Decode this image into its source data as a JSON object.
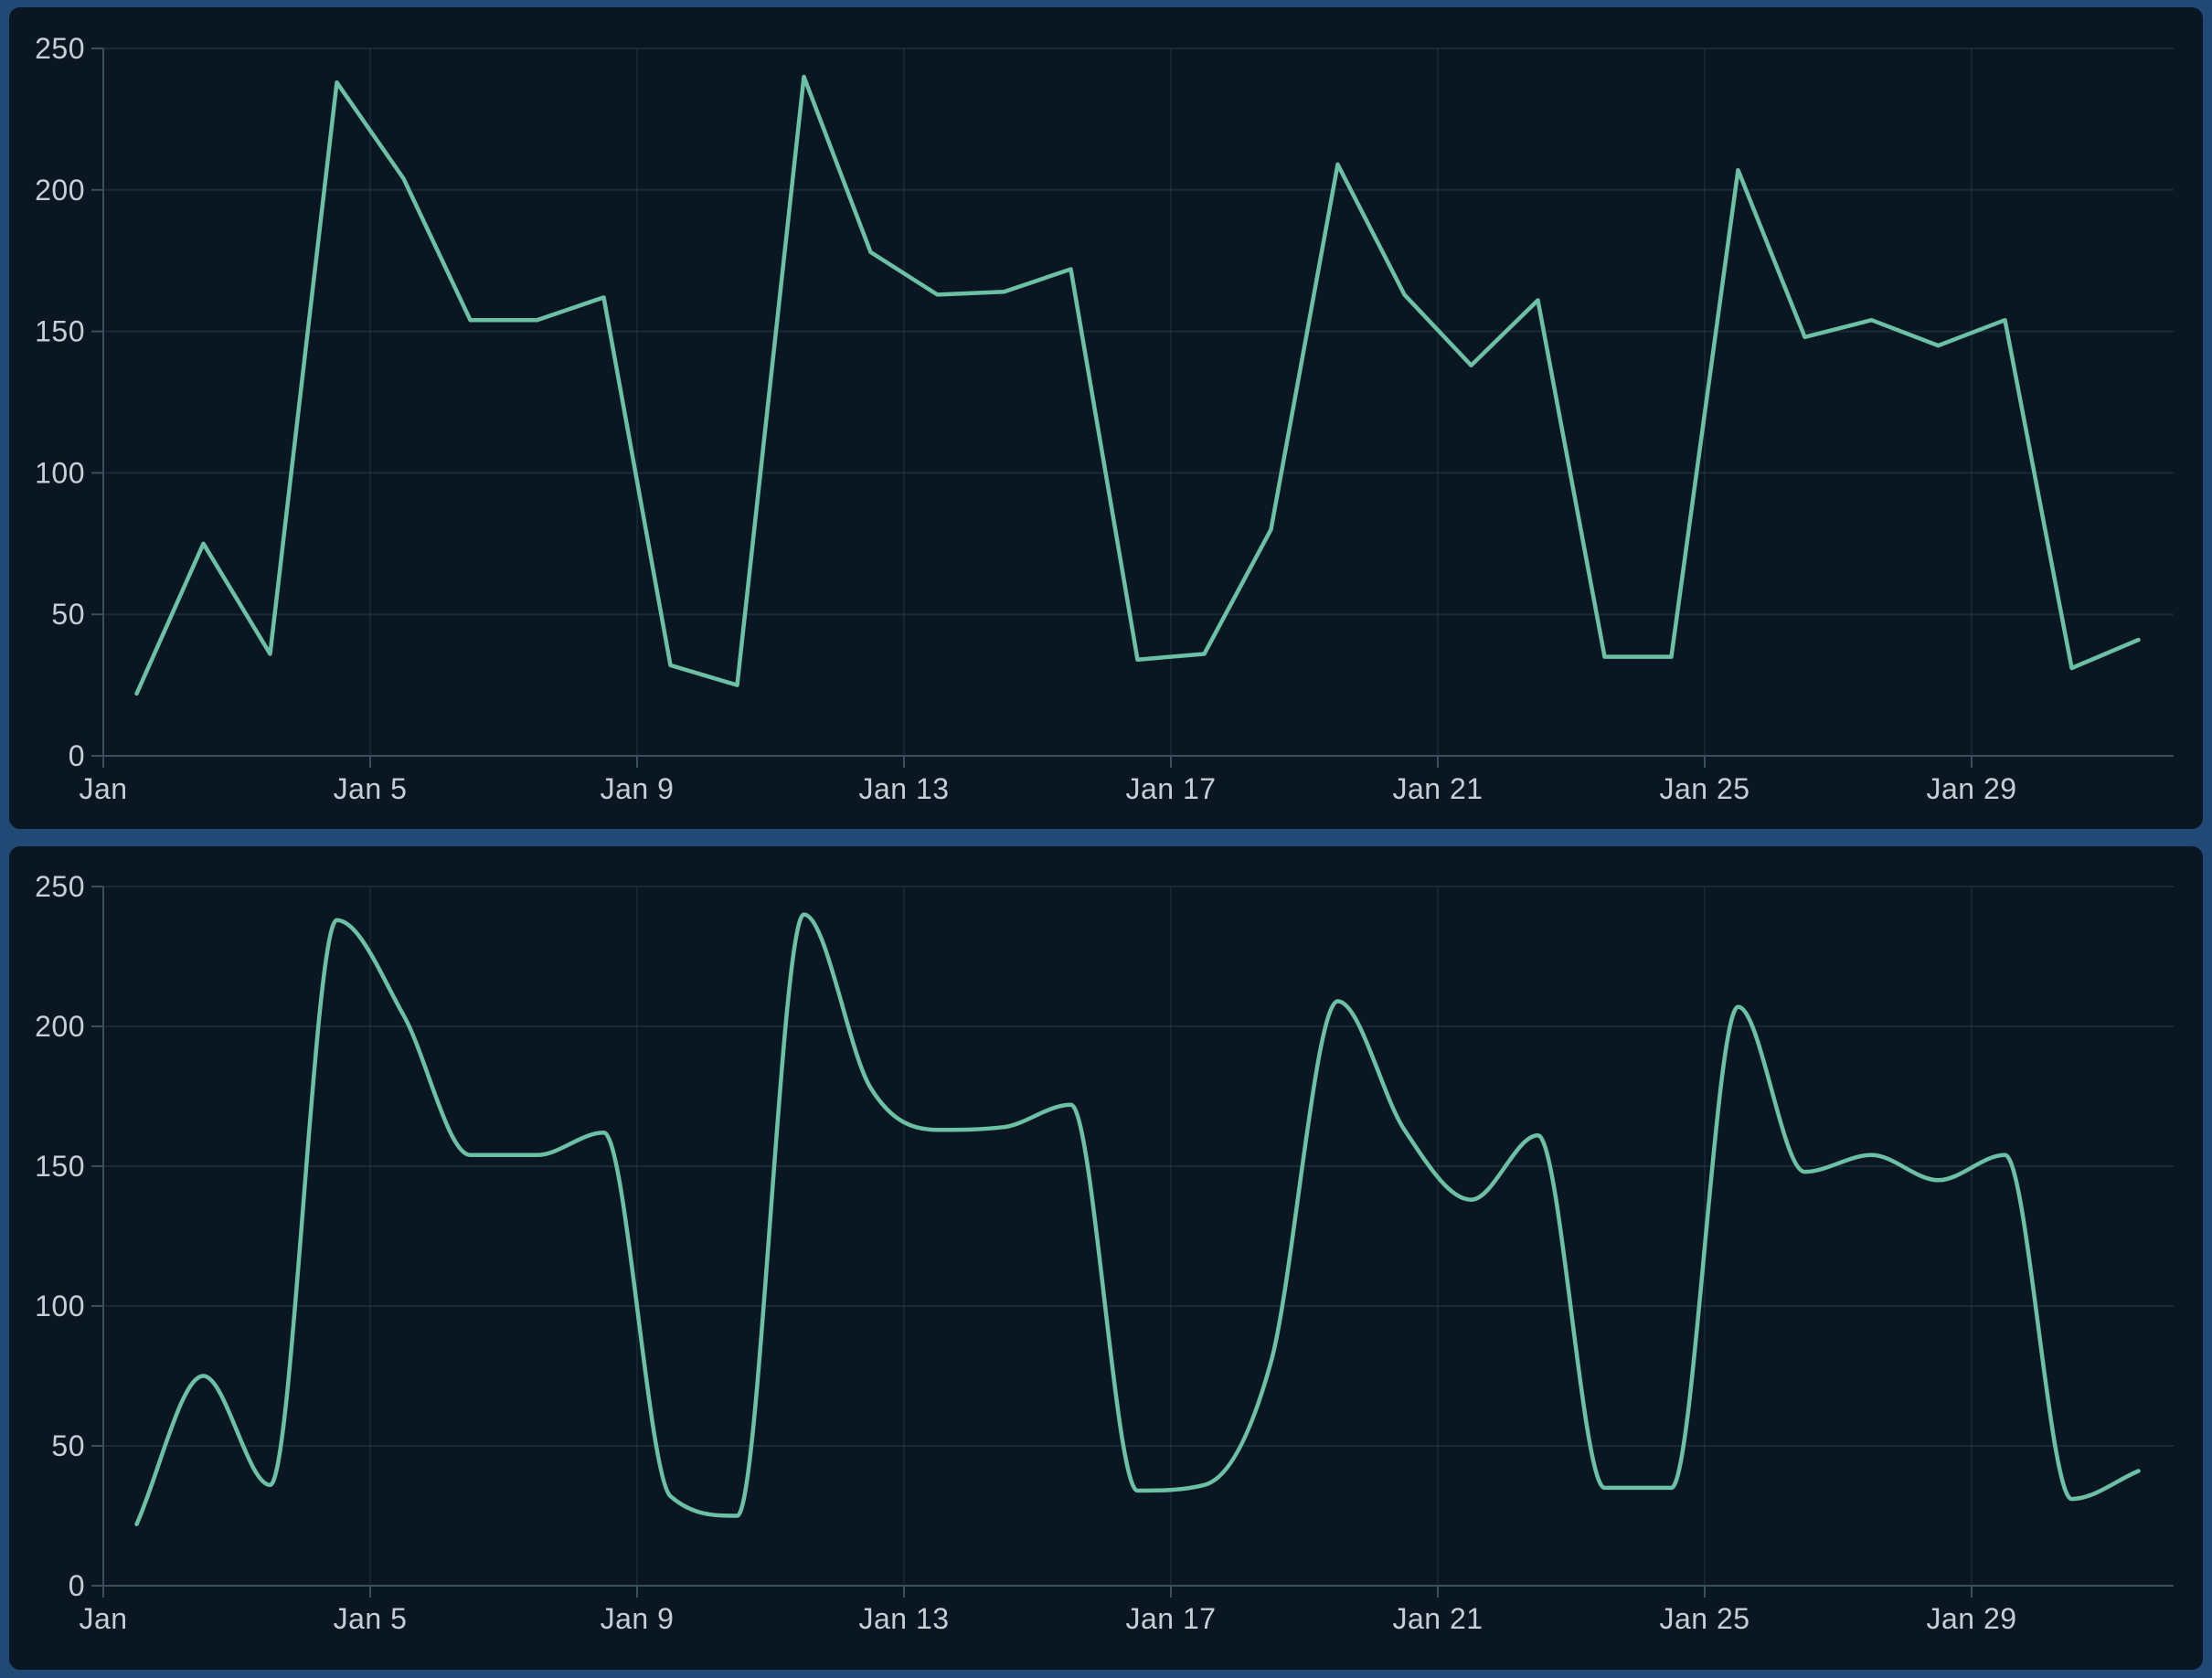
{
  "theme": {
    "frame_color": "#204976",
    "panel_background": "#0a1723",
    "line_color": "#6cc1a5",
    "grid_color": "rgba(130,160,180,0.13)",
    "vgrid_color": "rgba(130,160,180,0.10)",
    "axis_color": "#3a4e5e",
    "label_color": "#c6cdd5"
  },
  "chart_data": [
    {
      "type": "line",
      "interpolation": "linear",
      "title": "",
      "xlabel": "",
      "ylabel": "",
      "x": [
        "Jan 1",
        "Jan 2",
        "Jan 3",
        "Jan 4",
        "Jan 5",
        "Jan 6",
        "Jan 7",
        "Jan 8",
        "Jan 9",
        "Jan 10",
        "Jan 11",
        "Jan 12",
        "Jan 13",
        "Jan 14",
        "Jan 15",
        "Jan 16",
        "Jan 17",
        "Jan 18",
        "Jan 19",
        "Jan 20",
        "Jan 21",
        "Jan 22",
        "Jan 23",
        "Jan 24",
        "Jan 25",
        "Jan 26",
        "Jan 27",
        "Jan 28",
        "Jan 29",
        "Jan 30",
        "Jan 31"
      ],
      "values": [
        22,
        75,
        36,
        238,
        204,
        154,
        154,
        162,
        32,
        25,
        240,
        178,
        163,
        164,
        172,
        34,
        36,
        80,
        209,
        163,
        138,
        161,
        35,
        35,
        207,
        148,
        154,
        145,
        154,
        31,
        41
      ],
      "ylim": [
        0,
        250
      ],
      "y_ticks": [
        0,
        50,
        100,
        150,
        200,
        250
      ],
      "x_ticks": [
        {
          "index": 0,
          "label": "Jan"
        },
        {
          "index": 4,
          "label": "Jan 5"
        },
        {
          "index": 8,
          "label": "Jan 9"
        },
        {
          "index": 12,
          "label": "Jan 13"
        },
        {
          "index": 16,
          "label": "Jan 17"
        },
        {
          "index": 20,
          "label": "Jan 21"
        },
        {
          "index": 24,
          "label": "Jan 25"
        },
        {
          "index": 28,
          "label": "Jan 29"
        }
      ],
      "grid": true,
      "legend": null,
      "line_color": "#6cc1a5"
    },
    {
      "type": "line",
      "interpolation": "smooth",
      "title": "",
      "xlabel": "",
      "ylabel": "",
      "x": [
        "Jan 1",
        "Jan 2",
        "Jan 3",
        "Jan 4",
        "Jan 5",
        "Jan 6",
        "Jan 7",
        "Jan 8",
        "Jan 9",
        "Jan 10",
        "Jan 11",
        "Jan 12",
        "Jan 13",
        "Jan 14",
        "Jan 15",
        "Jan 16",
        "Jan 17",
        "Jan 18",
        "Jan 19",
        "Jan 20",
        "Jan 21",
        "Jan 22",
        "Jan 23",
        "Jan 24",
        "Jan 25",
        "Jan 26",
        "Jan 27",
        "Jan 28",
        "Jan 29",
        "Jan 30",
        "Jan 31"
      ],
      "values": [
        22,
        75,
        36,
        238,
        204,
        154,
        154,
        162,
        32,
        25,
        240,
        178,
        163,
        164,
        172,
        34,
        36,
        80,
        209,
        163,
        138,
        161,
        35,
        35,
        207,
        148,
        154,
        145,
        154,
        31,
        41
      ],
      "ylim": [
        0,
        250
      ],
      "y_ticks": [
        0,
        50,
        100,
        150,
        200,
        250
      ],
      "x_ticks": [
        {
          "index": 0,
          "label": "Jan"
        },
        {
          "index": 4,
          "label": "Jan 5"
        },
        {
          "index": 8,
          "label": "Jan 9"
        },
        {
          "index": 12,
          "label": "Jan 13"
        },
        {
          "index": 16,
          "label": "Jan 17"
        },
        {
          "index": 20,
          "label": "Jan 21"
        },
        {
          "index": 24,
          "label": "Jan 25"
        },
        {
          "index": 28,
          "label": "Jan 29"
        }
      ],
      "grid": true,
      "legend": null,
      "line_color": "#6cc1a5"
    }
  ]
}
